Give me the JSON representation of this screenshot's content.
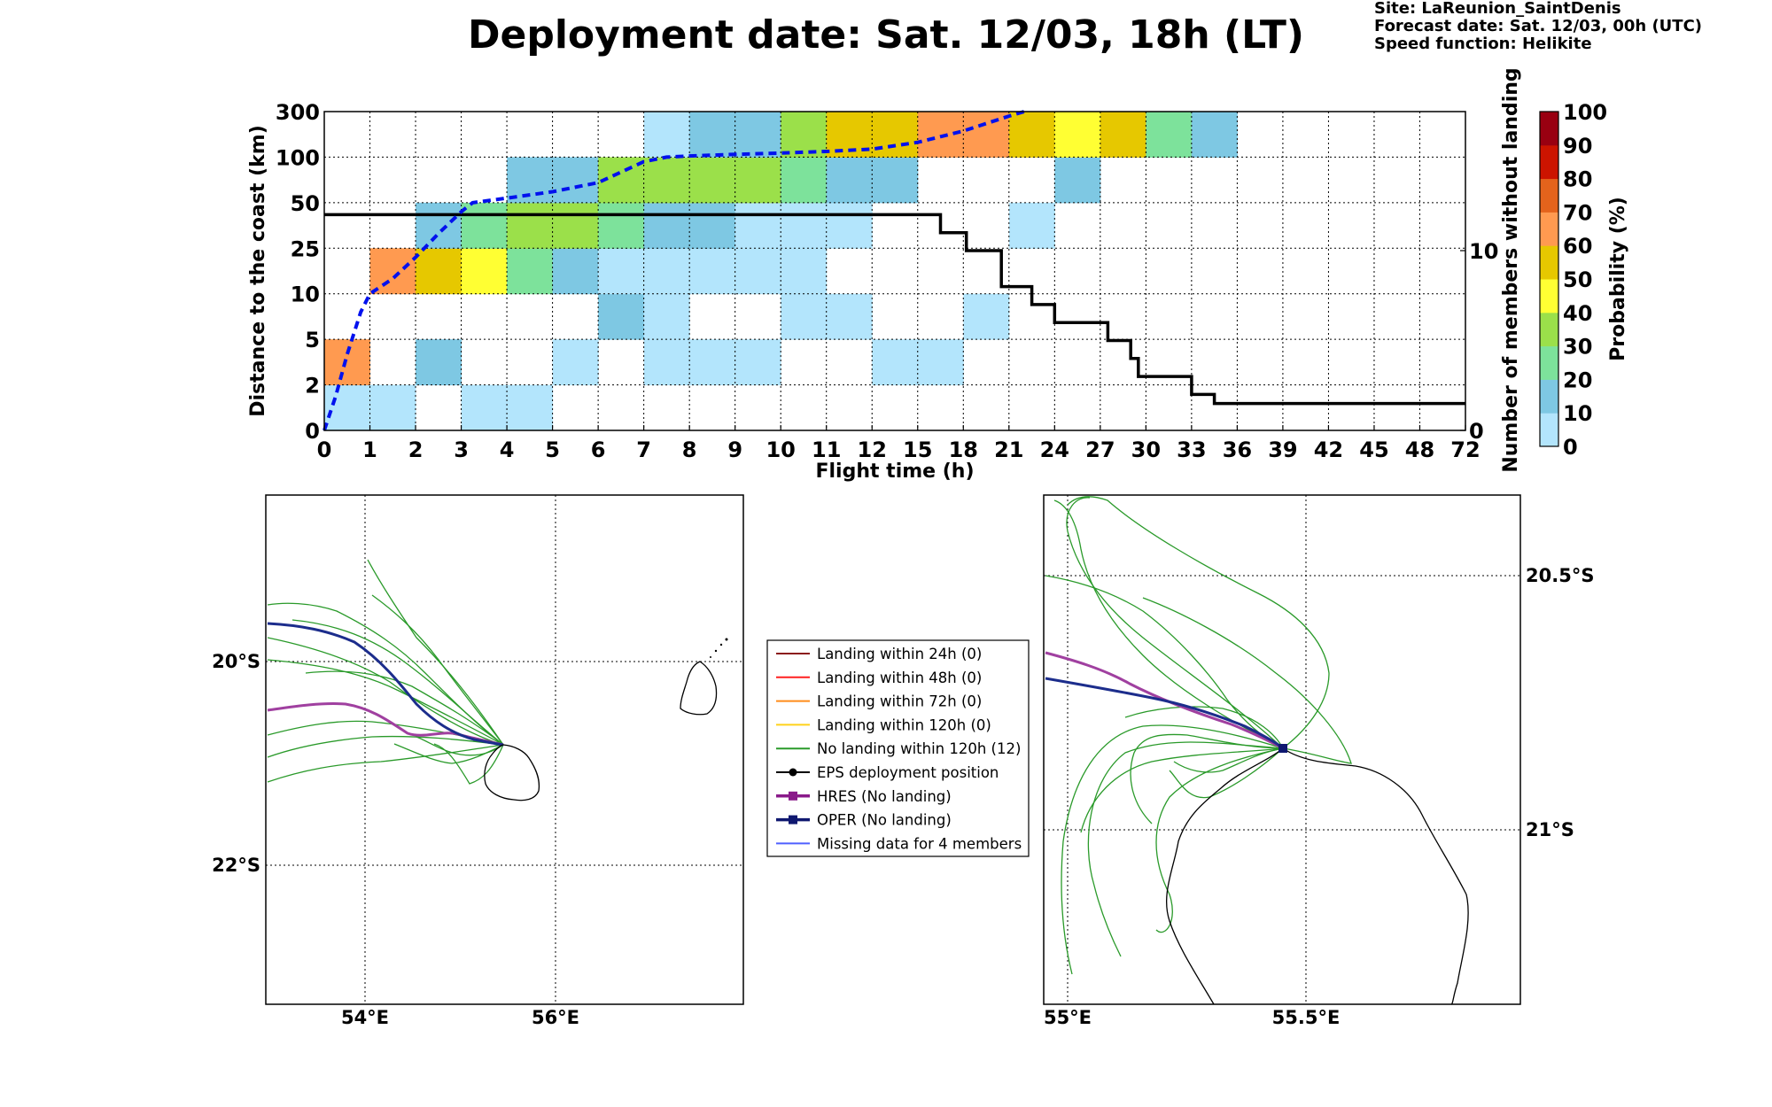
{
  "title": "Deployment date: Sat. 12/03, 18h (LT)",
  "info": {
    "site": "Site: LaReunion_SaintDenis",
    "forecast": "Forecast date: Sat. 12/03, 00h (UTC)",
    "speed": "Speed function: Helikite"
  },
  "colors": {
    "levels": [
      "#b3e5fc",
      "#7ec8e3",
      "#7de29b",
      "#9be04a",
      "#ffff33",
      "#e6c800",
      "#ff9a50",
      "#e4631c",
      "#cc1400",
      "#990011",
      "#680014"
    ],
    "p_line": "#0011ee",
    "members_line": "#000000",
    "member_track": "#2a9a2a",
    "hres": "#a040a0",
    "oper": "#1c2d8c"
  },
  "chart_data": [
    {
      "type": "heatmap",
      "xlabel": "Flight time (h)",
      "ylabel": "Distance to the coast (km)",
      "ylabel_right": "Number of members without landing",
      "x_ticks": [
        "0",
        "1",
        "2",
        "3",
        "4",
        "5",
        "6",
        "7",
        "8",
        "9",
        "10",
        "11",
        "12",
        "15",
        "18",
        "21",
        "24",
        "27",
        "30",
        "33",
        "36",
        "39",
        "42",
        "45",
        "48",
        "72"
      ],
      "y_ticks": [
        "0",
        "2",
        "5",
        "10",
        "25",
        "50",
        "100",
        "300"
      ],
      "right_ticks": [
        "0",
        "10"
      ],
      "grid": true,
      "colorbar": {
        "label": "Probability (%)",
        "ticks": [
          "0",
          "10",
          "20",
          "30",
          "40",
          "50",
          "60",
          "70",
          "80",
          "90",
          "100"
        ]
      },
      "cells_note": "each cell: [x-bin index, y-bin index, probability-level index]",
      "cells": [
        [
          0,
          0,
          0
        ],
        [
          1,
          0,
          0
        ],
        [
          3,
          0,
          0
        ],
        [
          4,
          0,
          0
        ],
        [
          0,
          1,
          6
        ],
        [
          2,
          1,
          1
        ],
        [
          5,
          1,
          0
        ],
        [
          7,
          1,
          0
        ],
        [
          8,
          1,
          0
        ],
        [
          9,
          1,
          0
        ],
        [
          12,
          1,
          0
        ],
        [
          13,
          1,
          0
        ],
        [
          6,
          2,
          1
        ],
        [
          7,
          2,
          0
        ],
        [
          10,
          2,
          0
        ],
        [
          11,
          2,
          0
        ],
        [
          14,
          2,
          0
        ],
        [
          1,
          3,
          6
        ],
        [
          2,
          3,
          5
        ],
        [
          3,
          3,
          4
        ],
        [
          4,
          3,
          2
        ],
        [
          5,
          3,
          1
        ],
        [
          6,
          3,
          0
        ],
        [
          7,
          3,
          0
        ],
        [
          8,
          3,
          0
        ],
        [
          9,
          3,
          0
        ],
        [
          10,
          3,
          0
        ],
        [
          2,
          4,
          1
        ],
        [
          3,
          4,
          2
        ],
        [
          4,
          4,
          3
        ],
        [
          5,
          4,
          3
        ],
        [
          6,
          4,
          2
        ],
        [
          7,
          4,
          1
        ],
        [
          8,
          4,
          1
        ],
        [
          9,
          4,
          0
        ],
        [
          10,
          4,
          0
        ],
        [
          11,
          4,
          0
        ],
        [
          15,
          4,
          0
        ],
        [
          4,
          5,
          1
        ],
        [
          5,
          5,
          1
        ],
        [
          6,
          5,
          3
        ],
        [
          7,
          5,
          3
        ],
        [
          8,
          5,
          3
        ],
        [
          9,
          5,
          3
        ],
        [
          10,
          5,
          2
        ],
        [
          11,
          5,
          1
        ],
        [
          12,
          5,
          1
        ],
        [
          16,
          5,
          1
        ],
        [
          7,
          6,
          0
        ],
        [
          8,
          6,
          1
        ],
        [
          9,
          6,
          1
        ],
        [
          10,
          6,
          3
        ],
        [
          11,
          6,
          5
        ],
        [
          12,
          6,
          5
        ],
        [
          13,
          6,
          6
        ],
        [
          14,
          6,
          6
        ],
        [
          15,
          6,
          5
        ],
        [
          16,
          6,
          4
        ],
        [
          17,
          6,
          5
        ],
        [
          18,
          6,
          2
        ],
        [
          19,
          6,
          1
        ]
      ],
      "median_distance_km": {
        "x_h": [
          0,
          0.25,
          0.5,
          0.8,
          1,
          1.5,
          2,
          2.5,
          3,
          3.25,
          4,
          5,
          6,
          7,
          7.5,
          8,
          9,
          10,
          11,
          12,
          15,
          18,
          21,
          22
        ],
        "y_km": [
          0,
          1.5,
          4,
          8,
          10,
          15,
          22,
          33,
          45,
          50,
          55,
          62,
          72,
          95,
          100,
          105,
          112,
          118,
          125,
          135,
          165,
          215,
          280,
          300
        ]
      },
      "members_without_landing": {
        "x_h": [
          0,
          16.5,
          16.5,
          18.2,
          18.2,
          20.5,
          20.5,
          22.5,
          22.5,
          24,
          24,
          27.5,
          27.5,
          29,
          29,
          29.5,
          29.5,
          33,
          33,
          34.5,
          34.5,
          72
        ],
        "count": [
          12,
          12,
          11,
          11,
          10,
          10,
          8,
          8,
          7,
          7,
          6,
          6,
          5,
          5,
          4,
          4,
          3,
          3,
          2,
          2,
          1.5,
          1.5
        ]
      }
    }
  ],
  "maps": {
    "left": {
      "x_ticks": [
        "54°E",
        "56°E"
      ],
      "y_ticks": [
        "20°S",
        "22°S"
      ]
    },
    "right": {
      "x_ticks": [
        "55°E",
        "55.5°E"
      ],
      "y_ticks": [
        "20.5°S",
        "21°S"
      ]
    }
  },
  "legend": [
    {
      "label": "Landing within 24h (0)",
      "color": "#8b1a1a",
      "marker": "none"
    },
    {
      "label": "Landing within 48h (0)",
      "color": "#ff2020",
      "marker": "none"
    },
    {
      "label": "Landing within 72h (0)",
      "color": "#ff8c1a",
      "marker": "none"
    },
    {
      "label": "Landing within 120h (0)",
      "color": "#ffd21a",
      "marker": "none"
    },
    {
      "label": "No landing within 120h (12)",
      "color": "#2a9a2a",
      "marker": "none"
    },
    {
      "label": "EPS deployment position",
      "color": "#000000",
      "marker": "circle"
    },
    {
      "label": "HRES (No landing)",
      "color": "#8a1a8a",
      "marker": "square"
    },
    {
      "label": "OPER (No landing)",
      "color": "#0f1870",
      "marker": "square"
    },
    {
      "label": "Missing data for 4 members",
      "color": "#4f5fff",
      "marker": "none"
    }
  ]
}
